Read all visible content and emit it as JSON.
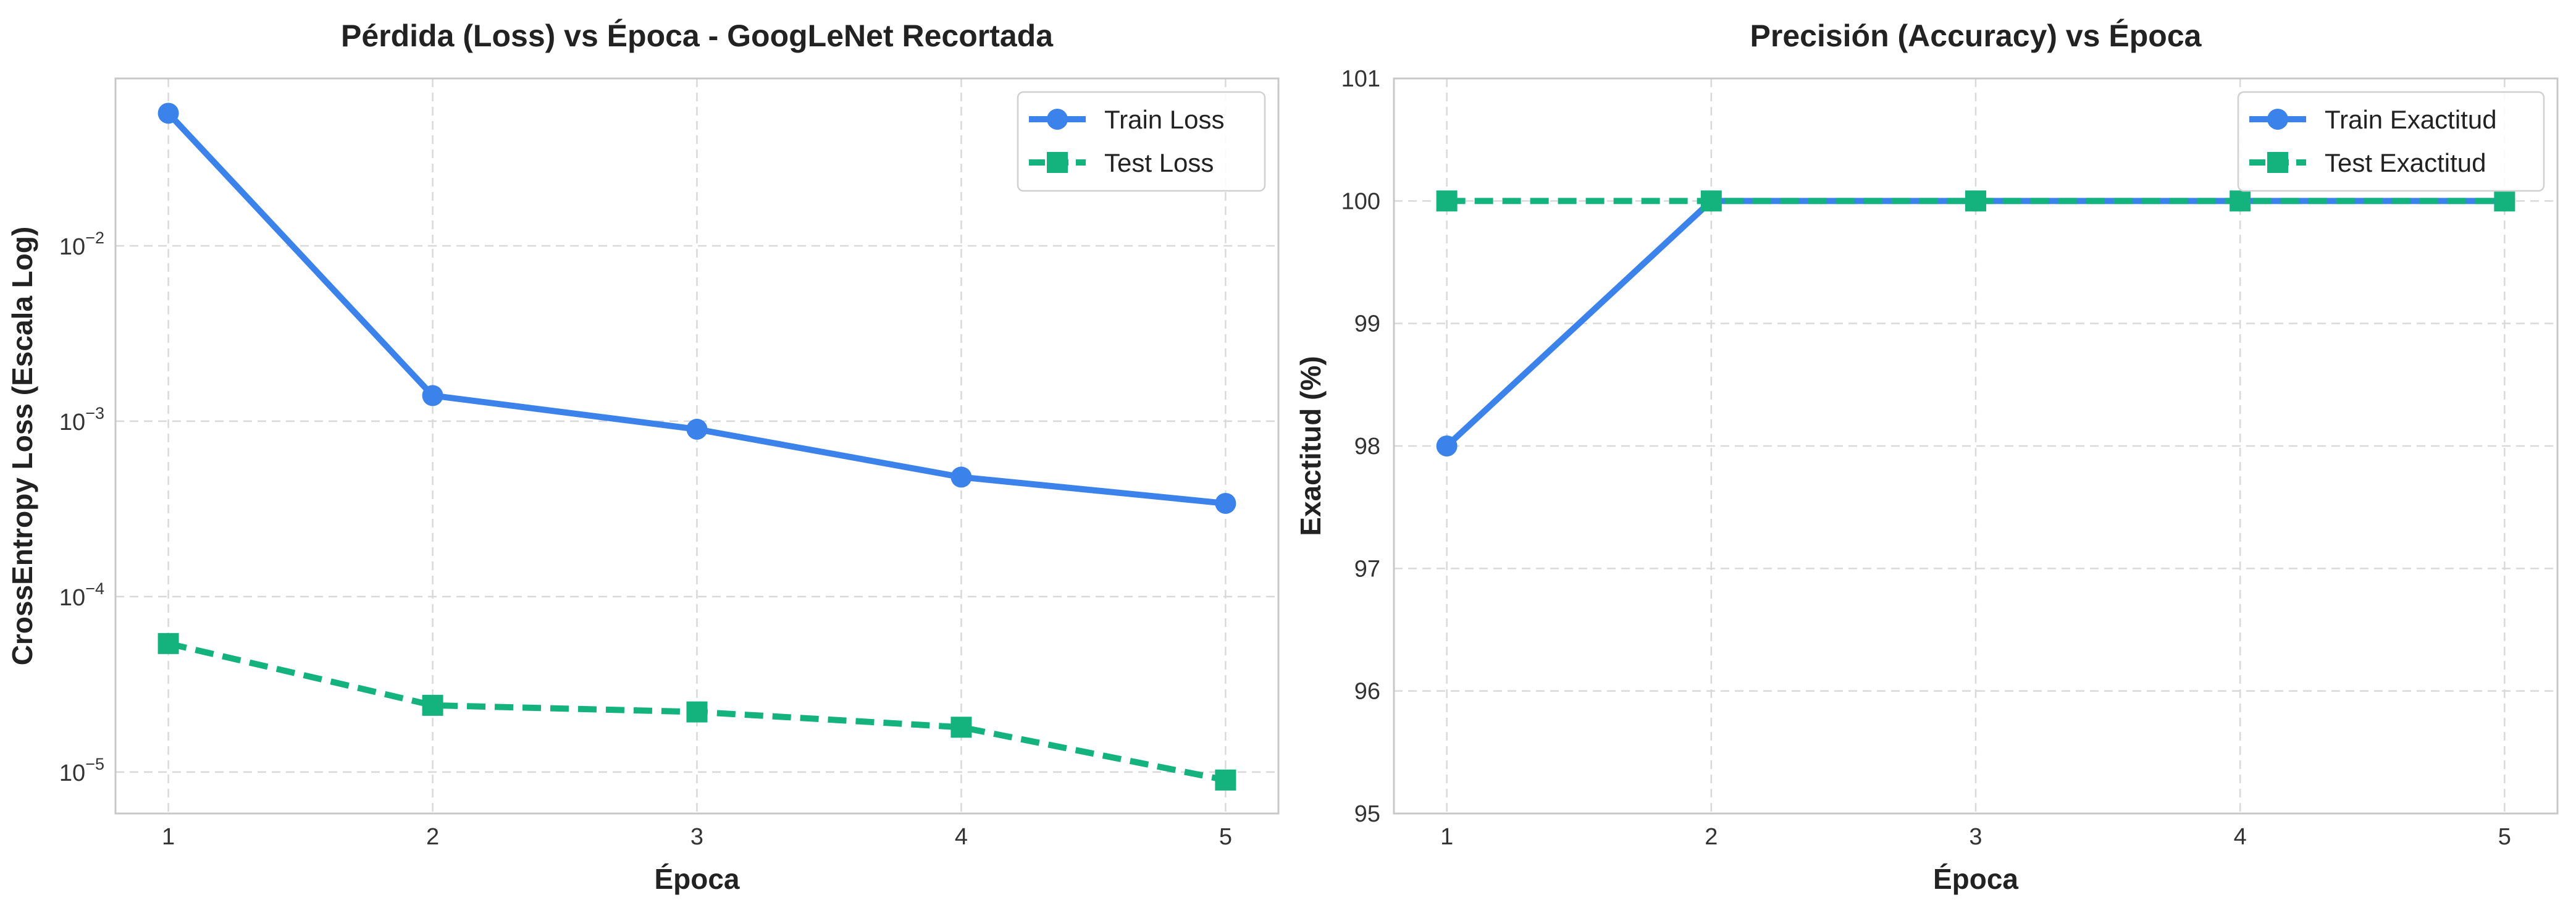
{
  "colors": {
    "train": "#3b82eb",
    "test": "#14b37d"
  },
  "chart_data": [
    {
      "type": "line",
      "title": "Pérdida (Loss) vs Época - GoogLeNet Recortada",
      "xlabel": "Época",
      "ylabel": "CrossEntropy Loss (Escala Log)",
      "yscale": "log",
      "x": [
        1,
        2,
        3,
        4,
        5
      ],
      "xlim": [
        0.8,
        5.2
      ],
      "ylim": [
        5.8e-06,
        0.09
      ],
      "yticks": [
        1e-05,
        0.0001,
        0.001,
        0.01
      ],
      "ytick_labels": [
        {
          "base": "10",
          "exp": "−5"
        },
        {
          "base": "10",
          "exp": "−4"
        },
        {
          "base": "10",
          "exp": "−3"
        },
        {
          "base": "10",
          "exp": "−2"
        }
      ],
      "grid": true,
      "legend": "top-right",
      "series": [
        {
          "name": "Train Loss",
          "values": [
            0.057,
            0.0014,
            0.0009,
            0.00048,
            0.00034
          ],
          "style": "solid",
          "marker": "circle",
          "color_key": "train"
        },
        {
          "name": "Test Loss",
          "values": [
            5.4e-05,
            2.4e-05,
            2.2e-05,
            1.8e-05,
            9e-06
          ],
          "style": "dashed",
          "marker": "square",
          "color_key": "test"
        }
      ]
    },
    {
      "type": "line",
      "title": "Precisión (Accuracy) vs Época",
      "xlabel": "Época",
      "ylabel": "Exactitud (%)",
      "yscale": "linear",
      "x": [
        1,
        2,
        3,
        4,
        5
      ],
      "xlim": [
        0.8,
        5.2
      ],
      "ylim": [
        95,
        101
      ],
      "yticks": [
        95,
        96,
        97,
        98,
        99,
        100,
        101
      ],
      "grid": true,
      "legend": "top-right",
      "series": [
        {
          "name": "Train Exactitud",
          "values": [
            98,
            100,
            100,
            100,
            100
          ],
          "style": "solid",
          "marker": "circle",
          "color_key": "train"
        },
        {
          "name": "Test Exactitud",
          "values": [
            100,
            100,
            100,
            100,
            100
          ],
          "style": "dashed",
          "marker": "square",
          "color_key": "test"
        }
      ]
    }
  ]
}
